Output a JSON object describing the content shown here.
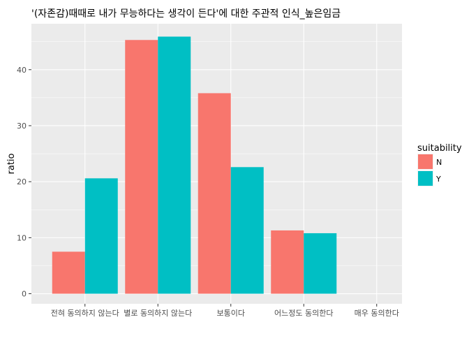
{
  "chart_data": {
    "type": "bar",
    "title": "'(자존감)때때로 내가 무능하다는 생각이 든다'에 대한 주관적 인식_높은임금",
    "xlabel": "",
    "ylabel": "ratio",
    "categories": [
      "전혀 동의하지 않는다",
      "별로 동의하지 않는다",
      "보통이다",
      "어느정도 동의한다",
      "매우 동의한다"
    ],
    "series": [
      {
        "name": "N",
        "color": "#F8766D",
        "values": [
          7.5,
          45.3,
          35.8,
          11.3,
          null
        ]
      },
      {
        "name": "Y",
        "color": "#00BFC4",
        "values": [
          20.6,
          45.9,
          22.6,
          10.8,
          null
        ]
      }
    ],
    "yticks": [
      0,
      10,
      20,
      30,
      40
    ],
    "ylim": [
      -1.8,
      48.2
    ],
    "grid": true,
    "legend": {
      "title": "suitability",
      "position": "right"
    },
    "panel_background": "#EBEBEB",
    "grid_color": "#FFFFFF"
  }
}
